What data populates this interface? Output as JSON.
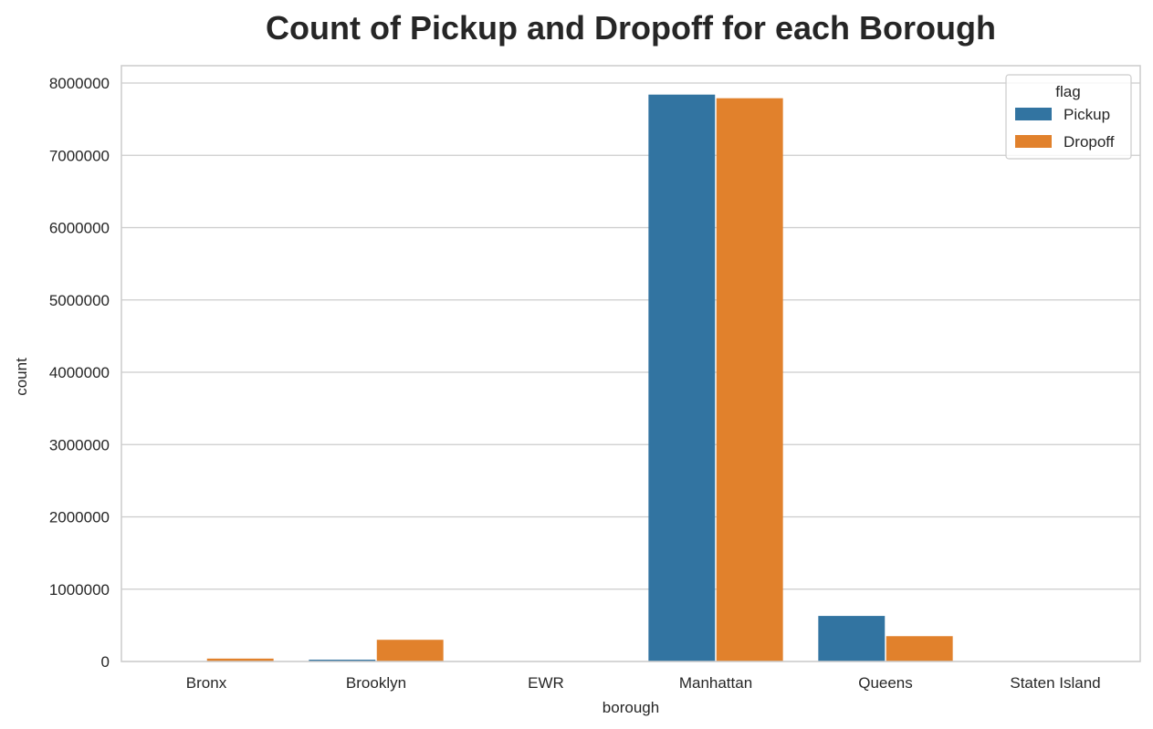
{
  "chart_data": {
    "type": "bar",
    "title": "Count of Pickup and Dropoff for each Borough",
    "xlabel": "borough",
    "ylabel": "count",
    "categories": [
      "Bronx",
      "Brooklyn",
      "EWR",
      "Manhattan",
      "Queens",
      "Staten Island"
    ],
    "series": [
      {
        "name": "Pickup",
        "color": "#3274a1",
        "values": [
          5000,
          25000,
          300,
          7840000,
          630000,
          300
        ]
      },
      {
        "name": "Dropoff",
        "color": "#e1812c",
        "values": [
          40000,
          300000,
          3000,
          7790000,
          350000,
          1000
        ]
      }
    ],
    "ylim": [
      0,
      8240000
    ],
    "yticks": [
      0,
      1000000,
      2000000,
      3000000,
      4000000,
      5000000,
      6000000,
      7000000,
      8000000
    ],
    "ytick_labels": [
      "0",
      "1000000",
      "2000000",
      "3000000",
      "4000000",
      "5000000",
      "6000000",
      "7000000",
      "8000000"
    ],
    "grid": true,
    "legend": {
      "title": "flag",
      "placement": "top-right"
    }
  }
}
